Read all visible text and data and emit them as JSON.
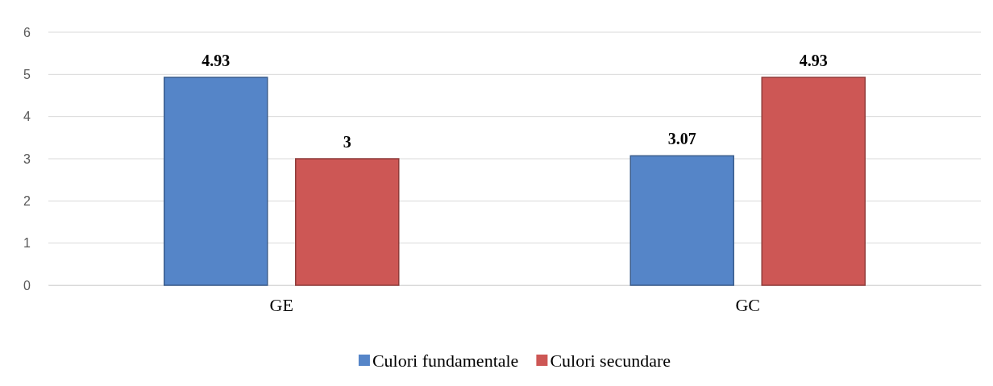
{
  "chart_data": {
    "type": "bar",
    "categories": [
      "GE",
      "GC"
    ],
    "series": [
      {
        "name": "Culori fundamentale",
        "color": "#5585c8",
        "values": [
          4.93,
          3.07
        ]
      },
      {
        "name": "Culori secundare",
        "color": "#cd5755",
        "values": [
          3,
          4.93
        ]
      }
    ],
    "ylim": [
      0,
      6
    ],
    "yticks": [
      0,
      1,
      2,
      3,
      4,
      5,
      6
    ],
    "grid": "y",
    "legend": "bottom",
    "data_labels": true
  }
}
